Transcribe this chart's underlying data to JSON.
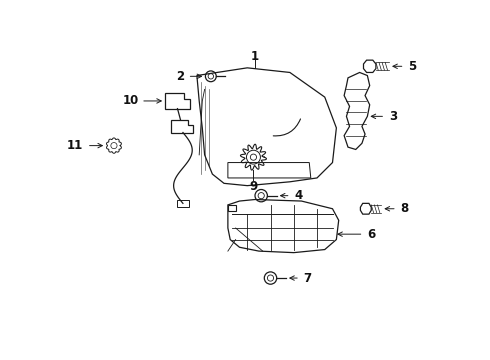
{
  "bg_color": "#ffffff",
  "line_color": "#1a1a1a",
  "text_color": "#111111",
  "fig_width": 4.9,
  "fig_height": 3.6,
  "dpi": 100
}
